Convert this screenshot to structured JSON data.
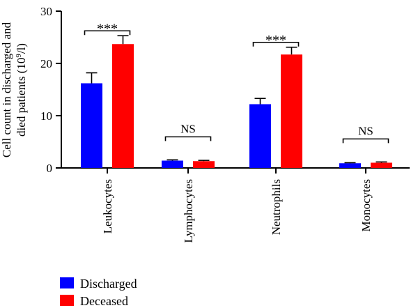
{
  "chart_data": {
    "type": "bar",
    "ylabel": "Cell count in discharged and died patients (10⁹/l)",
    "ylim": [
      0,
      30
    ],
    "yticks": [
      0,
      10,
      20,
      30
    ],
    "categories": [
      "Leukocytes",
      "Lymphocytes",
      "Neutrophils",
      "Monocytes"
    ],
    "series": [
      {
        "name": "Discharged",
        "color": "#0000ff",
        "values": [
          16.2,
          1.4,
          12.2,
          0.9
        ],
        "errors": [
          2.0,
          0.15,
          1.1,
          0.1
        ]
      },
      {
        "name": "Deceased",
        "color": "#ff0000",
        "values": [
          23.7,
          1.3,
          21.7,
          1.0
        ],
        "errors": [
          1.6,
          0.15,
          1.4,
          0.15
        ]
      }
    ],
    "significance": [
      "***",
      "NS",
      "***",
      "NS"
    ],
    "legend_position": "bottom-left",
    "grid": false
  }
}
